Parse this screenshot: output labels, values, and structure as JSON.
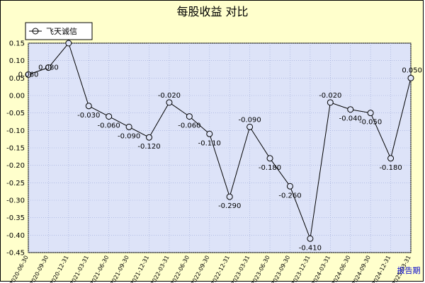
{
  "chart_data": {
    "type": "line",
    "title": "每股收益  对比",
    "xlabel": "报告期",
    "ylabel": "",
    "ylim": [
      -0.45,
      0.15
    ],
    "yticks": [
      "0.15",
      "0.10",
      "0.05",
      "0.00",
      "-0.05",
      "-0.10",
      "-0.15",
      "-0.20",
      "-0.25",
      "-0.30",
      "-0.35",
      "-0.40",
      "-0.45"
    ],
    "grid": true,
    "legend_position": "top-left",
    "categories": [
      "2020-06-30",
      "2020-09-30",
      "2020-12-31",
      "2021-03-31",
      "2021-06-30",
      "2021-09-30",
      "2021-12-31",
      "2022-03-31",
      "2022-06-30",
      "2022-09-30",
      "2022-12-31",
      "2023-03-31",
      "2023-06-30",
      "2023-09-30",
      "2023-12-31",
      "2024-03-31",
      "2024-06-30",
      "2024-09-30",
      "2024-12-31",
      "2025-03-31"
    ],
    "series": [
      {
        "name": "飞天诚信",
        "color": "#000000",
        "values": [
          0.06,
          0.08,
          0.15,
          -0.03,
          -0.06,
          -0.09,
          -0.12,
          -0.02,
          -0.06,
          -0.11,
          -0.29,
          -0.09,
          -0.18,
          -0.26,
          -0.41,
          -0.02,
          -0.04,
          -0.05,
          -0.18,
          0.05
        ],
        "labels": [
          "0.060",
          "0.080",
          "",
          "-0.030",
          "-0.060",
          "-0.090",
          "-0.120",
          "-0.020",
          "-0.060",
          "-0.110",
          "-0.290",
          "-0.090",
          "-0.180",
          "-0.260",
          "-0.410",
          "-0.020",
          "-0.040",
          "-0.050",
          "-0.180",
          "0.050"
        ]
      }
    ],
    "colors": {
      "plot_bg": "#dde3f8",
      "outer_bg": "#ffffcc",
      "grid": "#9aa6d8",
      "line": "#000000"
    }
  }
}
